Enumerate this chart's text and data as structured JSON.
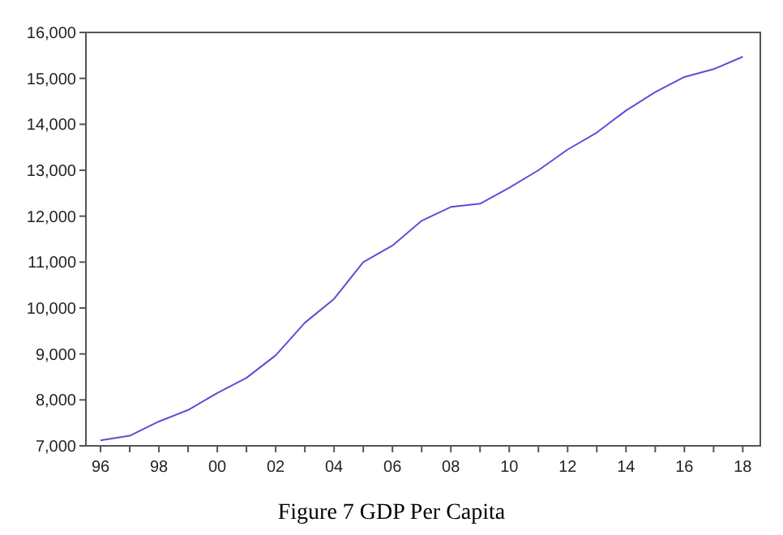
{
  "chart_data": {
    "type": "line",
    "title": "Figure 7 GDP Per Capita",
    "x": [
      1996,
      1997,
      1998,
      1999,
      2000,
      2001,
      2002,
      2003,
      2004,
      2005,
      2006,
      2007,
      2008,
      2009,
      2010,
      2011,
      2012,
      2013,
      2014,
      2015,
      2016,
      2017,
      2018
    ],
    "series": [
      {
        "color": "#5b4fd6",
        "values": [
          7120,
          7220,
          7530,
          7780,
          8150,
          8480,
          8970,
          9680,
          10200,
          11000,
          11360,
          11900,
          12200,
          12270,
          12620,
          13000,
          13450,
          13820,
          14300,
          14700,
          15030,
          15200,
          15470
        ]
      }
    ],
    "xlim": [
      1995.5,
      2018.6
    ],
    "xticks": [
      {
        "value": 1996,
        "label": "96"
      },
      {
        "value": 1997,
        "label": null
      },
      {
        "value": 1998,
        "label": "98"
      },
      {
        "value": 1999,
        "label": null
      },
      {
        "value": 2000,
        "label": "00"
      },
      {
        "value": 2001,
        "label": null
      },
      {
        "value": 2002,
        "label": "02"
      },
      {
        "value": 2003,
        "label": null
      },
      {
        "value": 2004,
        "label": "04"
      },
      {
        "value": 2005,
        "label": null
      },
      {
        "value": 2006,
        "label": "06"
      },
      {
        "value": 2007,
        "label": null
      },
      {
        "value": 2008,
        "label": "08"
      },
      {
        "value": 2009,
        "label": null
      },
      {
        "value": 2010,
        "label": "10"
      },
      {
        "value": 2011,
        "label": null
      },
      {
        "value": 2012,
        "label": "12"
      },
      {
        "value": 2013,
        "label": null
      },
      {
        "value": 2014,
        "label": "14"
      },
      {
        "value": 2015,
        "label": null
      },
      {
        "value": 2016,
        "label": "16"
      },
      {
        "value": 2017,
        "label": null
      },
      {
        "value": 2018,
        "label": "18"
      }
    ],
    "ylim": [
      7000,
      16000
    ],
    "yticks": [
      {
        "value": 7000,
        "label": "7,000"
      },
      {
        "value": 8000,
        "label": "8,000"
      },
      {
        "value": 9000,
        "label": "9,000"
      },
      {
        "value": 10000,
        "label": "10,000"
      },
      {
        "value": 11000,
        "label": "11,000"
      },
      {
        "value": 12000,
        "label": "12,000"
      },
      {
        "value": 13000,
        "label": "13,000"
      },
      {
        "value": 14000,
        "label": "14,000"
      },
      {
        "value": 15000,
        "label": "15,000"
      },
      {
        "value": 16000,
        "label": "16,000"
      }
    ],
    "grid": false,
    "marker": "none",
    "line_style": "solid"
  }
}
